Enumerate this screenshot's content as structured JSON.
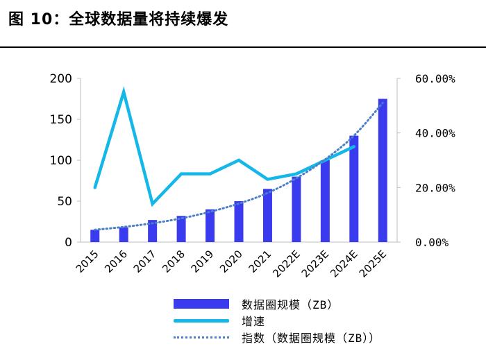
{
  "figure": {
    "title": "图 10：全球数据量将持续爆发"
  },
  "chart_data": {
    "type": "bar",
    "categories": [
      "2015",
      "2016",
      "2017",
      "2018",
      "2019",
      "2020",
      "2021",
      "2022E",
      "2023E",
      "2024E",
      "2025E"
    ],
    "series": [
      {
        "name": "数据圈规模（ZB）",
        "type": "bar",
        "axis": "left",
        "values": [
          15,
          18,
          27,
          32,
          40,
          50,
          65,
          80,
          100,
          130,
          175
        ],
        "color": "#3a3aef"
      },
      {
        "name": "增速",
        "type": "line",
        "axis": "right",
        "values": [
          0.2,
          0.55,
          0.14,
          0.25,
          0.25,
          0.3,
          0.23,
          0.25,
          0.3,
          0.35,
          null
        ],
        "color": "#14b8e8"
      },
      {
        "name": "指数（数据圈规模（ZB））",
        "type": "line",
        "style": "dotted",
        "axis": "left",
        "values": [
          15,
          18.5,
          23,
          29,
          37,
          47,
          60,
          78,
          101,
          130,
          170
        ],
        "color": "#4a7ec8"
      }
    ],
    "ylim_left": [
      0,
      200
    ],
    "yticks_left": [
      "0",
      "50",
      "100",
      "150",
      "200"
    ],
    "ylim_right": [
      0,
      0.6
    ],
    "yticks_right": [
      "0.00%",
      "20.00%",
      "40.00%",
      "60.00%"
    ],
    "legend": "bottom"
  }
}
